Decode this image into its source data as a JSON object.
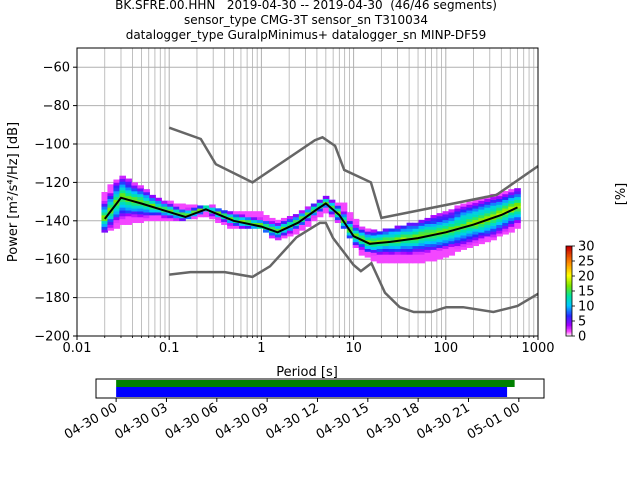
{
  "header": {
    "line1": "BK.SFRE.00.HHN   2019-04-30 -- 2019-04-30  (46/46 segments)",
    "line2": "sensor_type CMG-3T sensor_sn T310034",
    "line3": "datalogger_type GuralpMinimus+ datalogger_sn MINP-DF59"
  },
  "colors": {
    "grid": "#b0b0b0",
    "noise_models": "#666666",
    "mean_curve": "#000000",
    "coverage_data": "#008000",
    "coverage_gaps_free": "#0000ff"
  },
  "chart_data": [
    {
      "type": "heatmap",
      "xlabel": "Period [s]",
      "ylabel": "Power [m²/s⁴/Hz] [dB]",
      "xscale": "log",
      "xlim": [
        0.01,
        1000
      ],
      "ylim": [
        -200,
        -50
      ],
      "grid": true,
      "x_ticks": [
        0.01,
        0.1,
        1,
        10,
        100,
        1000
      ],
      "x_tick_labels": [
        "0.01",
        "0.1",
        "1",
        "10",
        "100",
        "1000"
      ],
      "y_ticks": [
        -200,
        -180,
        -160,
        -140,
        -120,
        -100,
        -80,
        -60
      ],
      "y_tick_labels": [
        "−200",
        "−180",
        "−160",
        "−140",
        "−120",
        "−100",
        "−80",
        "−60"
      ],
      "colorbar": {
        "label": "[%]",
        "range": [
          0,
          30
        ],
        "ticks": [
          0,
          5,
          10,
          15,
          20,
          25,
          30
        ],
        "tick_labels": [
          "0",
          "5",
          "10",
          "15",
          "20",
          "25",
          "30"
        ]
      },
      "psd_bands": [
        {
          "period": 0.02,
          "low": -146,
          "high": -126
        },
        {
          "period": 0.03,
          "low": -142,
          "high": -116
        },
        {
          "period": 0.05,
          "low": -140,
          "high": -122
        },
        {
          "period": 0.08,
          "low": -140,
          "high": -130
        },
        {
          "period": 0.15,
          "low": -139,
          "high": -132
        },
        {
          "period": 0.25,
          "low": -137,
          "high": -132
        },
        {
          "period": 0.5,
          "low": -144,
          "high": -136
        },
        {
          "period": 1,
          "low": -144,
          "high": -136
        },
        {
          "period": 1.5,
          "low": -150,
          "high": -140
        },
        {
          "period": 2.5,
          "low": -146,
          "high": -137
        },
        {
          "period": 5,
          "low": -135,
          "high": -128
        },
        {
          "period": 8,
          "low": -144,
          "high": -132
        },
        {
          "period": 12,
          "low": -157,
          "high": -144
        },
        {
          "period": 20,
          "low": -162,
          "high": -146
        },
        {
          "period": 40,
          "low": -162,
          "high": -142
        },
        {
          "period": 80,
          "low": -160,
          "high": -138
        },
        {
          "period": 150,
          "low": -155,
          "high": -132
        },
        {
          "period": 300,
          "low": -150,
          "high": -128
        },
        {
          "period": 600,
          "low": -144,
          "high": -124
        }
      ],
      "mean_curve": {
        "period": [
          0.02,
          0.03,
          0.05,
          0.08,
          0.15,
          0.25,
          0.5,
          1,
          1.5,
          2.5,
          4,
          5,
          7,
          10,
          15,
          25,
          50,
          100,
          200,
          400,
          600
        ],
        "power": [
          -139,
          -128,
          -131,
          -134,
          -138,
          -134,
          -140,
          -143,
          -146,
          -141,
          -134,
          -131,
          -137,
          -148,
          -152,
          -151,
          -149,
          -146,
          -142,
          -137,
          -133
        ]
      },
      "noise_model_high": {
        "period": [
          0.1,
          0.22,
          0.32,
          0.8,
          3.8,
          4.6,
          6.3,
          7.9,
          15.4,
          20,
          354.8,
          1000
        ],
        "power": [
          -91.5,
          -97.4,
          -110.5,
          -120,
          -98,
          -96.5,
          -101,
          -113.5,
          -120,
          -138.5,
          -126.5,
          -111.5
        ]
      },
      "noise_model_low": {
        "period": [
          0.1,
          0.17,
          0.4,
          0.8,
          1.24,
          2.4,
          4.3,
          5,
          6,
          10,
          12,
          15.6,
          21.9,
          31.6,
          45,
          70,
          101,
          154,
          328,
          600,
          1000
        ],
        "power": [
          -168,
          -166.7,
          -166.7,
          -169.2,
          -163.7,
          -148.6,
          -141.1,
          -141.1,
          -149,
          -163,
          -166.2,
          -162.1,
          -177.5,
          -185,
          -187.5,
          -187.5,
          -185,
          -185,
          -187.5,
          -184.4,
          -178
        ]
      }
    },
    {
      "type": "bar",
      "title": "",
      "x_tick_labels": [
        "04-30 00",
        "04-30 03",
        "04-30 06",
        "04-30 09",
        "04-30 12",
        "04-30 15",
        "04-30 18",
        "04-30 21",
        "05-01 00"
      ],
      "xlim_hours": [
        -1.2,
        25.5
      ],
      "series": [
        {
          "kind": "data",
          "start_hour": 0,
          "end_hour": 23.75
        },
        {
          "kind": "gaps_free",
          "start_hour": 0,
          "end_hour": 23.3
        }
      ]
    }
  ]
}
